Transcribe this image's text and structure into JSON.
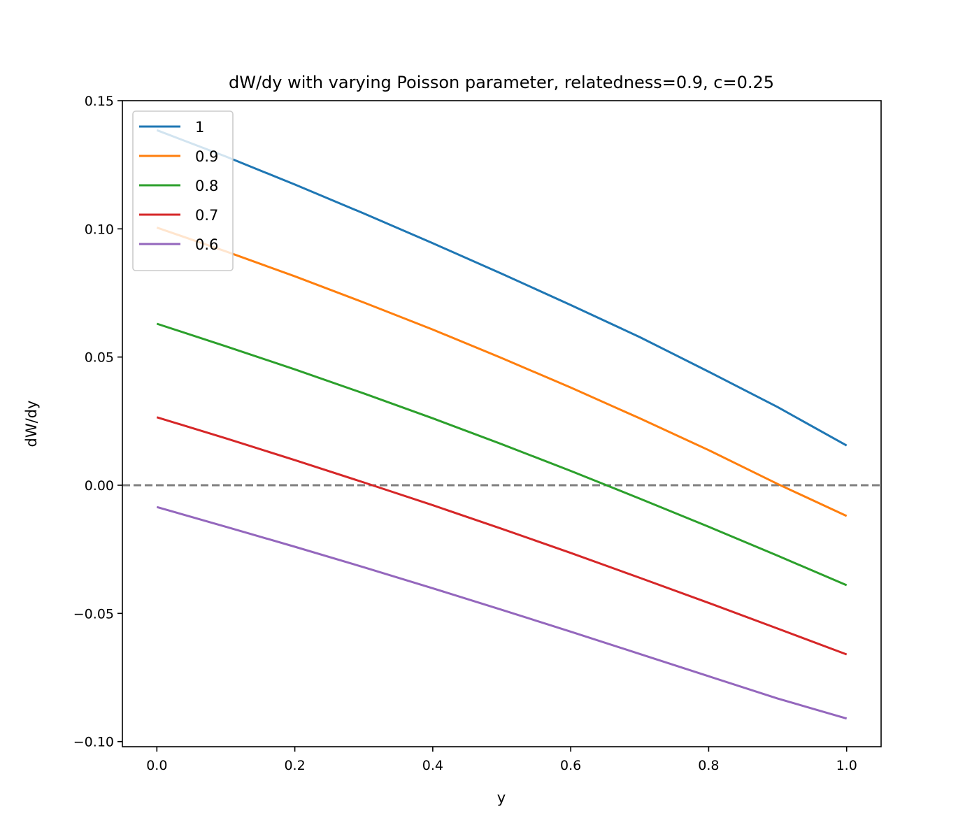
{
  "chart_data": {
    "type": "line",
    "title": "dW/dy with varying Poisson parameter, relatedness=0.9, c=0.25",
    "xlabel": "y",
    "ylabel": "dW/dy",
    "xlim": [
      -0.05,
      1.05
    ],
    "ylim": [
      -0.102,
      0.15
    ],
    "xticks": [
      0.0,
      0.2,
      0.4,
      0.6,
      0.8,
      1.0
    ],
    "xtick_labels": [
      "0.0",
      "0.2",
      "0.4",
      "0.6",
      "0.8",
      "1.0"
    ],
    "yticks": [
      -0.1,
      -0.05,
      0.0,
      0.05,
      0.1,
      0.15
    ],
    "ytick_labels": [
      "−0.10",
      "−0.05",
      "0.00",
      "0.05",
      "0.10",
      "0.15"
    ],
    "grid": false,
    "legend_position": "upper-left",
    "x": [
      0.0,
      0.1,
      0.2,
      0.3,
      0.4,
      0.5,
      0.6,
      0.7,
      0.8,
      0.9,
      1.0
    ],
    "series": [
      {
        "name": "1",
        "color": "#1f77b4",
        "values": [
          0.1385,
          0.1282,
          0.1173,
          0.106,
          0.0944,
          0.0825,
          0.0703,
          0.0578,
          0.0443,
          0.0305,
          0.0155
        ]
      },
      {
        "name": "0.9",
        "color": "#ff7f0e",
        "values": [
          0.1005,
          0.0912,
          0.0815,
          0.0713,
          0.0607,
          0.0496,
          0.0381,
          0.0261,
          0.0137,
          0.0005,
          -0.012
        ]
      },
      {
        "name": "0.8",
        "color": "#2ca02c",
        "values": [
          0.063,
          0.0542,
          0.0452,
          0.0358,
          0.0261,
          0.016,
          0.0056,
          -0.0052,
          -0.0162,
          -0.0275,
          -0.039
        ]
      },
      {
        "name": "0.7",
        "color": "#d62728",
        "values": [
          0.0265,
          0.0183,
          0.0098,
          0.0011,
          -0.0078,
          -0.017,
          -0.0264,
          -0.0361,
          -0.0459,
          -0.0559,
          -0.066
        ]
      },
      {
        "name": "0.6",
        "color": "#9467bd",
        "values": [
          -0.0085,
          -0.0162,
          -0.024,
          -0.032,
          -0.0402,
          -0.0486,
          -0.0571,
          -0.0658,
          -0.0745,
          -0.0832,
          -0.091
        ]
      }
    ],
    "reference_line": {
      "y": 0.0,
      "color": "#808080",
      "style": "dashed"
    }
  }
}
